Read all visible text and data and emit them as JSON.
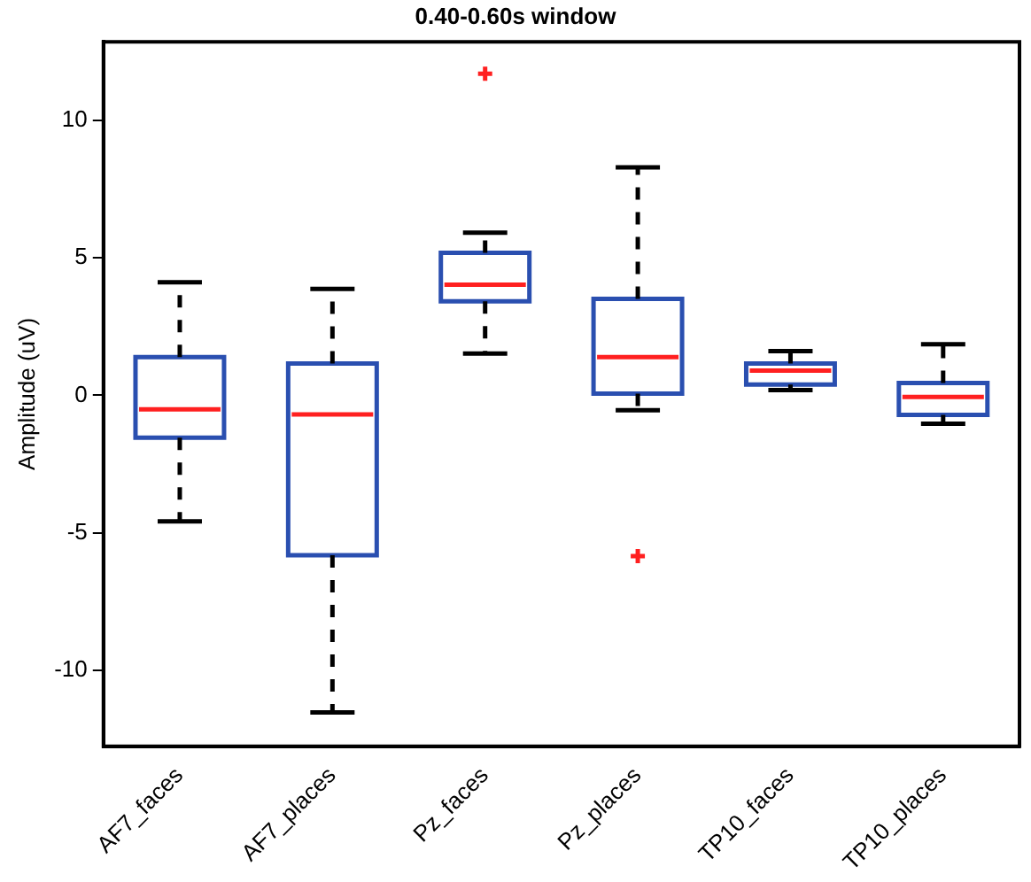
{
  "chart_data": {
    "type": "box",
    "title": "0.40-0.60s window",
    "ylabel": "Amplitude (uV)",
    "categories": [
      "AF7_faces",
      "AF7_places",
      "Pz_faces",
      "Pz_places",
      "TP10_faces",
      "TP10_places"
    ],
    "ylim": [
      -12.75,
      12.85
    ],
    "yticks": [
      -10,
      -5,
      0,
      5,
      10
    ],
    "grid": false,
    "series": [
      {
        "color": "#2a4fb0",
        "boxes": [
          {
            "low": -4.58,
            "q1": -1.54,
            "median": -0.51,
            "q3": 1.39,
            "high": 4.11
          },
          {
            "low": -11.52,
            "q1": -5.81,
            "median": -0.69,
            "q3": 1.16,
            "high": 3.87
          },
          {
            "low": 1.52,
            "q1": 3.42,
            "median": 4.02,
            "q3": 5.18,
            "high": 5.91,
            "outliers": [
              11.69
            ]
          },
          {
            "low": -0.54,
            "q1": 0.06,
            "median": 1.39,
            "q3": 3.51,
            "high": 8.29,
            "outliers": [
              -5.84
            ]
          },
          {
            "low": 0.19,
            "q1": 0.39,
            "median": 0.9,
            "q3": 1.16,
            "high": 1.61
          },
          {
            "low": -1.03,
            "q1": -0.71,
            "median": -0.06,
            "q3": 0.45,
            "high": 1.86
          }
        ]
      }
    ]
  }
}
